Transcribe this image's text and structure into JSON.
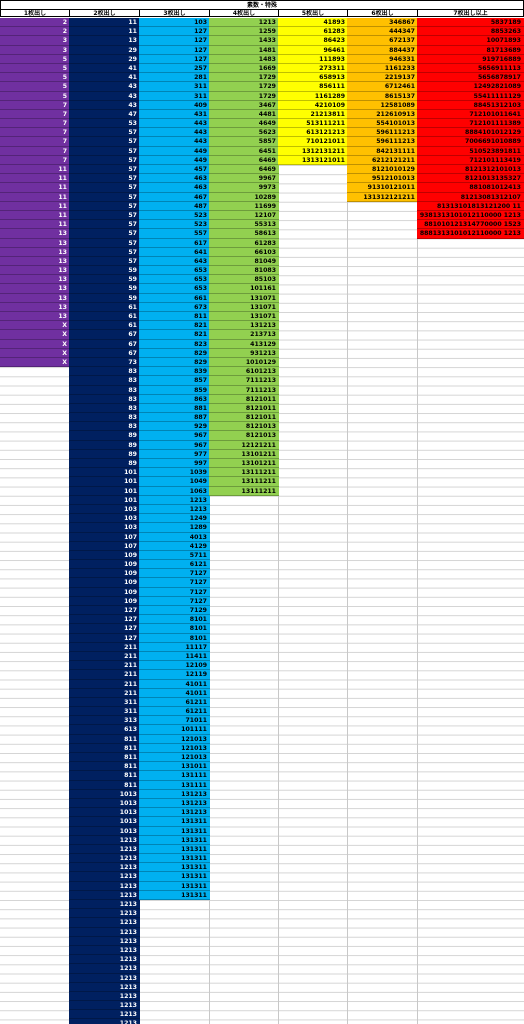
{
  "title": "素数・特殊",
  "columns": [
    {
      "header": "1枚出し",
      "bg": "#7030a0",
      "color": "#ffffff",
      "values": [
        "2",
        "2",
        "3",
        "3",
        "5",
        "5",
        "5",
        "5",
        "5",
        "7",
        "7",
        "7",
        "7",
        "7",
        "7",
        "7",
        "11",
        "11",
        "11",
        "11",
        "11",
        "11",
        "11",
        "13",
        "13",
        "13",
        "13",
        "13",
        "13",
        "13",
        "13",
        "13",
        "13",
        "X",
        "X",
        "X",
        "X",
        "X"
      ]
    },
    {
      "header": "2枚出し",
      "bg": "#002060",
      "color": "#ffffff",
      "values": [
        "11",
        "11",
        "13",
        "29",
        "29",
        "41",
        "41",
        "43",
        "43",
        "43",
        "47",
        "53",
        "57",
        "57",
        "57",
        "57",
        "57",
        "57",
        "57",
        "57",
        "57",
        "57",
        "57",
        "57",
        "57",
        "57",
        "57",
        "59",
        "59",
        "59",
        "59",
        "61",
        "61",
        "61",
        "67",
        "67",
        "67",
        "73",
        "83",
        "83",
        "83",
        "83",
        "83",
        "83",
        "83",
        "89",
        "89",
        "89",
        "89",
        "101",
        "101",
        "101",
        "101",
        "103",
        "103",
        "103",
        "107",
        "107",
        "109",
        "109",
        "109",
        "109",
        "109",
        "109",
        "127",
        "127",
        "127",
        "127",
        "211",
        "211",
        "211",
        "211",
        "211",
        "211",
        "311",
        "311",
        "313",
        "613",
        "811",
        "811",
        "811",
        "811",
        "811",
        "811",
        "1013",
        "1013",
        "1013",
        "1013",
        "1013",
        "1213",
        "1213",
        "1213",
        "1213",
        "1213",
        "1213",
        "1213",
        "1213",
        "1213",
        "1213",
        "1213",
        "1213",
        "1213",
        "1213",
        "1213",
        "1213",
        "1213",
        "1213",
        "1213",
        "1213",
        "1213",
        "1213",
        "1213"
      ]
    },
    {
      "header": "3枚出し",
      "bg": "#00b0f0",
      "color": "#000000",
      "values": [
        "103",
        "127",
        "127",
        "127",
        "127",
        "257",
        "281",
        "311",
        "311",
        "409",
        "431",
        "443",
        "443",
        "443",
        "449",
        "449",
        "457",
        "463",
        "463",
        "467",
        "487",
        "523",
        "523",
        "557",
        "617",
        "641",
        "643",
        "653",
        "653",
        "653",
        "661",
        "673",
        "811",
        "821",
        "821",
        "823",
        "829",
        "829",
        "839",
        "857",
        "859",
        "863",
        "881",
        "887",
        "929",
        "967",
        "967",
        "977",
        "997",
        "1039",
        "1049",
        "1063",
        "1213",
        "1213",
        "1249",
        "1289",
        "4013",
        "4129",
        "5711",
        "6121",
        "7127",
        "7127",
        "7127",
        "7127",
        "7129",
        "8101",
        "8101",
        "8101",
        "11117",
        "11411",
        "12109",
        "12119",
        "41011",
        "41011",
        "61211",
        "61211",
        "71011",
        "101111",
        "121013",
        "121013",
        "121013",
        "131011",
        "131111",
        "131111",
        "131213",
        "131213",
        "131213",
        "131311",
        "131311",
        "131311",
        "131311",
        "131311",
        "131311",
        "131311",
        "131311",
        "131311"
      ]
    },
    {
      "header": "4枚出し",
      "bg": "#92d050",
      "color": "#000000",
      "values": [
        "1213",
        "1259",
        "1433",
        "1481",
        "1483",
        "1669",
        "1729",
        "1729",
        "1729",
        "3467",
        "4481",
        "4649",
        "5623",
        "5857",
        "6451",
        "6469",
        "6469",
        "9967",
        "9973",
        "10289",
        "11699",
        "12107",
        "55313",
        "58613",
        "61283",
        "66103",
        "81049",
        "81083",
        "85103",
        "101161",
        "131071",
        "131071",
        "131071",
        "131213",
        "213713",
        "413129",
        "931213",
        "1010129",
        "6101213",
        "7111213",
        "7111213",
        "8121011",
        "8121011",
        "8121011",
        "8121013",
        "8121013",
        "12121211",
        "13101211",
        "13101211",
        "13111211",
        "13111211",
        "13111211"
      ]
    },
    {
      "header": "5枚出し",
      "bg": "#ffff00",
      "color": "#000000",
      "values": [
        "41893",
        "61283",
        "86423",
        "96461",
        "111893",
        "273311",
        "658913",
        "856111",
        "1161289",
        "4210109",
        "21213811",
        "513111211",
        "613121213",
        "710121011",
        "1312131211",
        "1313121011"
      ]
    },
    {
      "header": "6枚出し",
      "bg": "#ffc000",
      "color": "#000000",
      "values": [
        "346867",
        "444347",
        "672137",
        "884437",
        "946331",
        "1161233",
        "2219137",
        "6712461",
        "8615137",
        "12581089",
        "212610913",
        "554101013",
        "596111213",
        "596111213",
        "842131111",
        "6212121211",
        "8121010129",
        "9512101013",
        "91310121011",
        "131312121211"
      ]
    },
    {
      "header": "7枚出し以上",
      "bg": "#ff0000",
      "color": "#000000",
      "values": [
        "5837189",
        "8853263",
        "10071893",
        "81713689",
        "919716889",
        "5656911113",
        "5656878917",
        "12492821089",
        "55411111129",
        "88451312103",
        "712101011641",
        "712101111389",
        "8884101012129",
        "7006691010889",
        "510523891811",
        "712101113419",
        "8121312101013",
        "8121013135327",
        "881081012413",
        "81213081312107",
        "81313101813121200 11",
        "9381313101012110000 1213",
        "881010121314770000 1523",
        "8881313101012110000 1213"
      ]
    }
  ]
}
